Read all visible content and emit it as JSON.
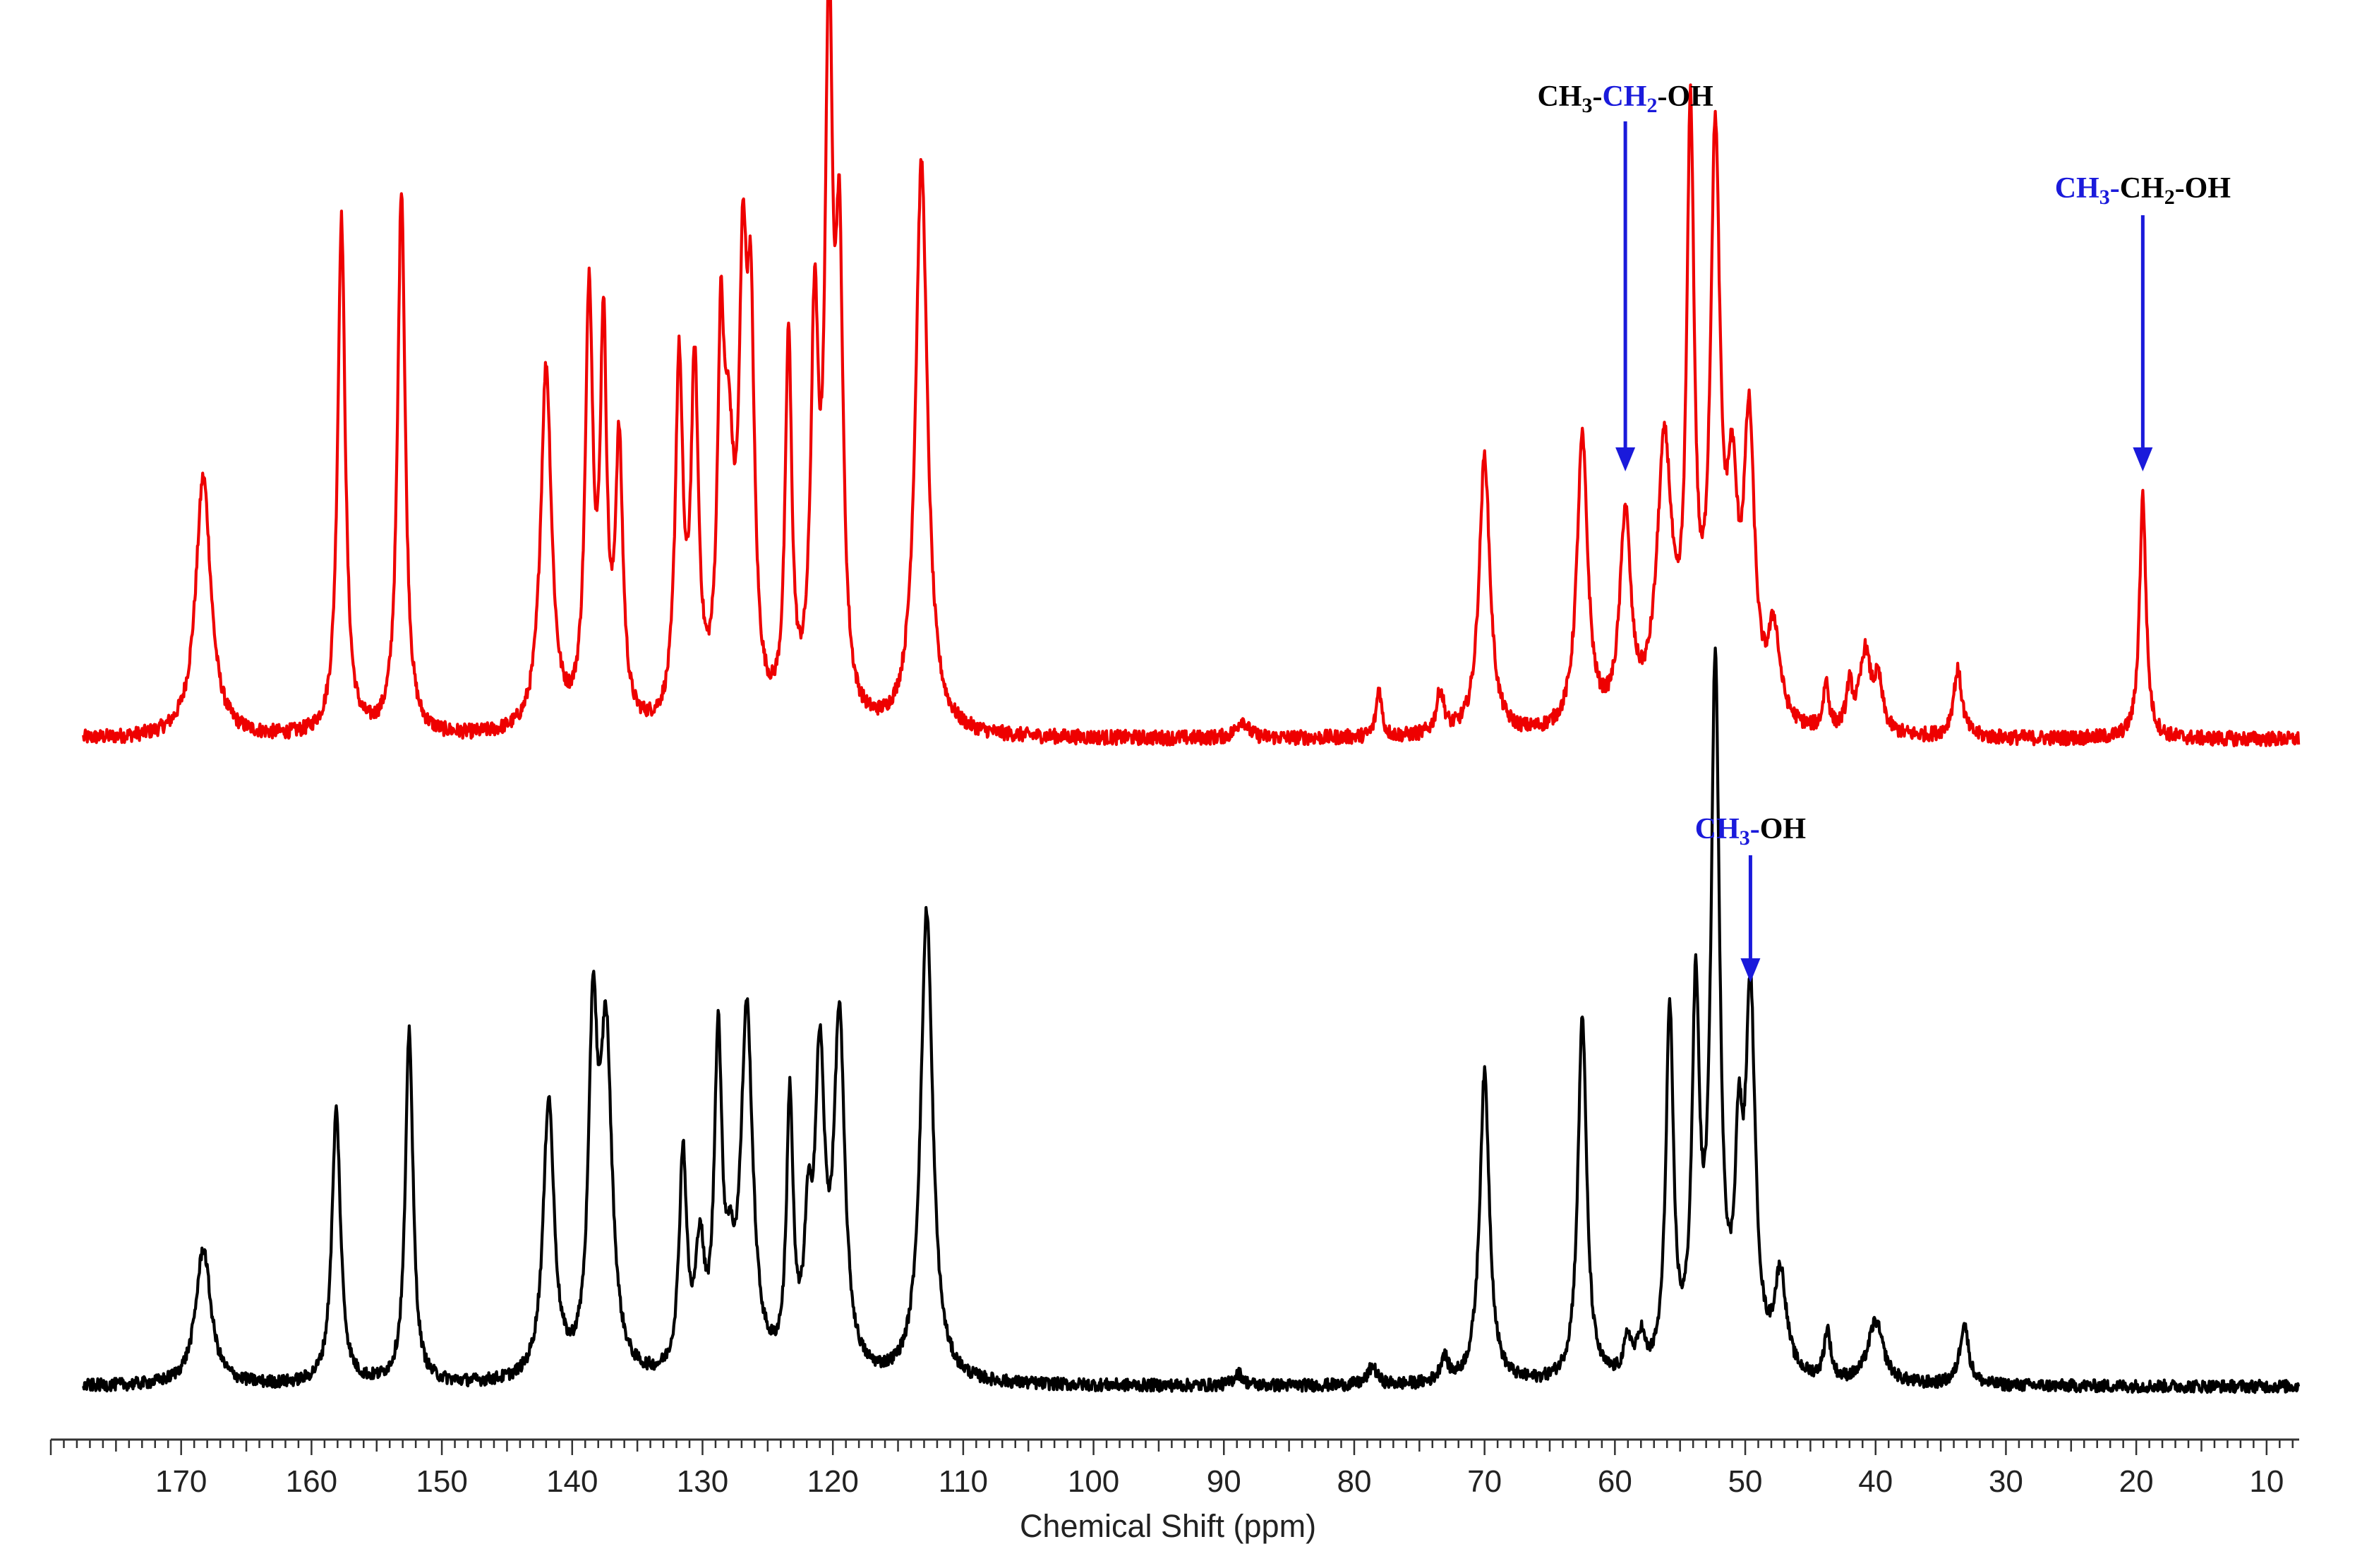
{
  "chart_data": {
    "type": "line",
    "xlabel": "Chemical Shift (ppm)",
    "ylabel": "",
    "title": "",
    "xlim": [
      180,
      7.5
    ],
    "x_reversed": true,
    "grid": false,
    "x_ticks": [
      170,
      160,
      150,
      140,
      130,
      120,
      110,
      100,
      90,
      80,
      70,
      60,
      50,
      40,
      30,
      20,
      10
    ],
    "x_tick_labels": [
      "170",
      "160",
      "150",
      "140",
      "130",
      "120",
      "110",
      "100",
      "90",
      "80",
      "70",
      "60",
      "50",
      "40",
      "30",
      "20",
      "10"
    ],
    "series": [
      {
        "color": "#ee0000",
        "baseline": 0,
        "noise": 0.012,
        "peaks": [
          [
            168.3,
            0.43,
            0.7
          ],
          [
            157.7,
            0.85,
            0.35
          ],
          [
            153.1,
            0.9,
            0.35
          ],
          [
            142.0,
            0.6,
            0.5
          ],
          [
            138.7,
            0.7,
            0.35
          ],
          [
            137.6,
            0.62,
            0.3
          ],
          [
            136.4,
            0.45,
            0.35
          ],
          [
            131.8,
            0.58,
            0.35
          ],
          [
            130.6,
            0.56,
            0.35
          ],
          [
            128.6,
            0.52,
            0.3
          ],
          [
            128.0,
            0.38,
            0.5
          ],
          [
            126.9,
            0.64,
            0.35
          ],
          [
            126.3,
            0.58,
            0.35
          ],
          [
            123.4,
            0.62,
            0.3
          ],
          [
            121.4,
            0.62,
            0.35
          ],
          [
            120.3,
            1.12,
            0.35
          ],
          [
            119.5,
            0.7,
            0.35
          ],
          [
            113.2,
            0.94,
            0.55
          ],
          [
            88.6,
            0.03,
            0.5
          ],
          [
            78.1,
            0.08,
            0.25
          ],
          [
            73.4,
            0.07,
            0.35
          ],
          [
            70.0,
            0.46,
            0.5
          ],
          [
            62.5,
            0.48,
            0.5
          ],
          [
            59.2,
            0.34,
            0.5
          ],
          [
            56.2,
            0.45,
            0.7
          ],
          [
            54.2,
            0.95,
            0.35
          ],
          [
            52.3,
            0.92,
            0.45
          ],
          [
            51.0,
            0.32,
            0.5
          ],
          [
            49.7,
            0.47,
            0.5
          ],
          [
            47.8,
            0.15,
            0.55
          ],
          [
            43.8,
            0.08,
            0.25
          ],
          [
            42.0,
            0.07,
            0.3
          ],
          [
            40.8,
            0.13,
            0.5
          ],
          [
            39.8,
            0.08,
            0.4
          ],
          [
            33.7,
            0.11,
            0.4
          ],
          [
            19.5,
            0.4,
            0.3
          ]
        ]
      },
      {
        "color": "#000000",
        "baseline": 0,
        "noise": 0.01,
        "peaks": [
          [
            168.3,
            0.22,
            0.7
          ],
          [
            158.1,
            0.44,
            0.4
          ],
          [
            152.5,
            0.57,
            0.35
          ],
          [
            141.8,
            0.45,
            0.5
          ],
          [
            138.4,
            0.53,
            0.4
          ],
          [
            137.4,
            0.53,
            0.55
          ],
          [
            131.5,
            0.35,
            0.35
          ],
          [
            130.2,
            0.19,
            0.4
          ],
          [
            128.8,
            0.52,
            0.35
          ],
          [
            127.9,
            0.11,
            0.4
          ],
          [
            126.6,
            0.58,
            0.55
          ],
          [
            123.3,
            0.43,
            0.3
          ],
          [
            121.9,
            0.19,
            0.35
          ],
          [
            121.0,
            0.48,
            0.45
          ],
          [
            119.5,
            0.56,
            0.5
          ],
          [
            112.8,
            0.76,
            0.55
          ],
          [
            88.9,
            0.02,
            0.4
          ],
          [
            78.6,
            0.03,
            0.4
          ],
          [
            73.1,
            0.04,
            0.35
          ],
          [
            70.0,
            0.5,
            0.45
          ],
          [
            62.5,
            0.59,
            0.4
          ],
          [
            59.0,
            0.06,
            0.35
          ],
          [
            58.0,
            0.06,
            0.35
          ],
          [
            55.8,
            0.58,
            0.35
          ],
          [
            53.8,
            0.58,
            0.35
          ],
          [
            52.3,
            1.12,
            0.4
          ],
          [
            50.5,
            0.3,
            0.35
          ],
          [
            49.6,
            0.59,
            0.45
          ],
          [
            47.3,
            0.16,
            0.55
          ],
          [
            43.7,
            0.08,
            0.3
          ],
          [
            40.0,
            0.1,
            0.7
          ],
          [
            33.2,
            0.1,
            0.4
          ]
        ]
      }
    ],
    "annotations": [
      {
        "segments": [
          {
            "text": "CH",
            "color": "#000000"
          },
          {
            "text": "3",
            "color": "#000000",
            "sub": true
          },
          {
            "text": "-",
            "color": "#000000"
          },
          {
            "text": "CH",
            "color": "#1a1adb"
          },
          {
            "text": "2",
            "color": "#1a1adb",
            "sub": true
          },
          {
            "text": "-OH",
            "color": "#000000"
          }
        ],
        "x_ppm": 59.2,
        "color": "#1a1adb"
      },
      {
        "segments": [
          {
            "text": "CH",
            "color": "#1a1adb"
          },
          {
            "text": "3",
            "color": "#1a1adb",
            "sub": true
          },
          {
            "text": "-",
            "color": "#1a1adb"
          },
          {
            "text": "CH",
            "color": "#000000"
          },
          {
            "text": "2",
            "color": "#000000",
            "sub": true
          },
          {
            "text": "-OH",
            "color": "#000000"
          }
        ],
        "x_ppm": 19.5,
        "color": "#1a1adb"
      },
      {
        "segments": [
          {
            "text": "CH",
            "color": "#1a1adb"
          },
          {
            "text": "3",
            "color": "#1a1adb",
            "sub": true
          },
          {
            "text": "-",
            "color": "#1a1adb"
          },
          {
            "text": "OH",
            "color": "#000000"
          }
        ],
        "x_ppm": 49.6,
        "color": "#1a1adb"
      }
    ]
  }
}
